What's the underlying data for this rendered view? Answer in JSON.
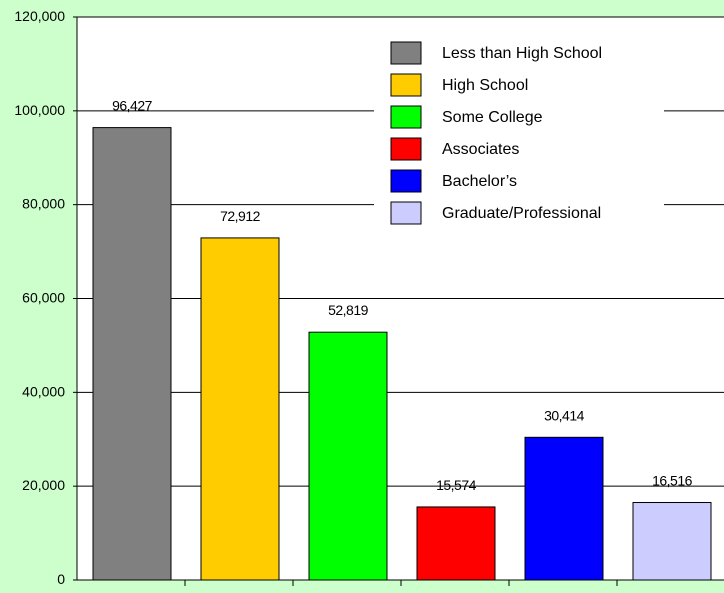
{
  "chart_data": {
    "type": "bar",
    "categories": [
      "Less than High School",
      "High School",
      "Some College",
      "Associates",
      "Bachelor’s",
      "Graduate/Professional"
    ],
    "values": [
      96427,
      72912,
      52819,
      15574,
      30414,
      16516
    ],
    "value_labels": [
      "96,427",
      "72,912",
      "52,819",
      "15,574",
      "30,414",
      "16,516"
    ],
    "colors": [
      "#808080",
      "#ffcc00",
      "#00ff00",
      "#ff0000",
      "#0000ff",
      "#ccccff"
    ],
    "ylim": [
      0,
      120000
    ],
    "yticks": [
      0,
      20000,
      40000,
      60000,
      80000,
      100000,
      120000
    ],
    "ytick_labels": [
      "0",
      "20,000",
      "40,000",
      "60,000",
      "80,000",
      "100,000",
      "120,000"
    ],
    "grid": true,
    "legend_position": "top-right",
    "title": "",
    "xlabel": "",
    "ylabel": ""
  }
}
